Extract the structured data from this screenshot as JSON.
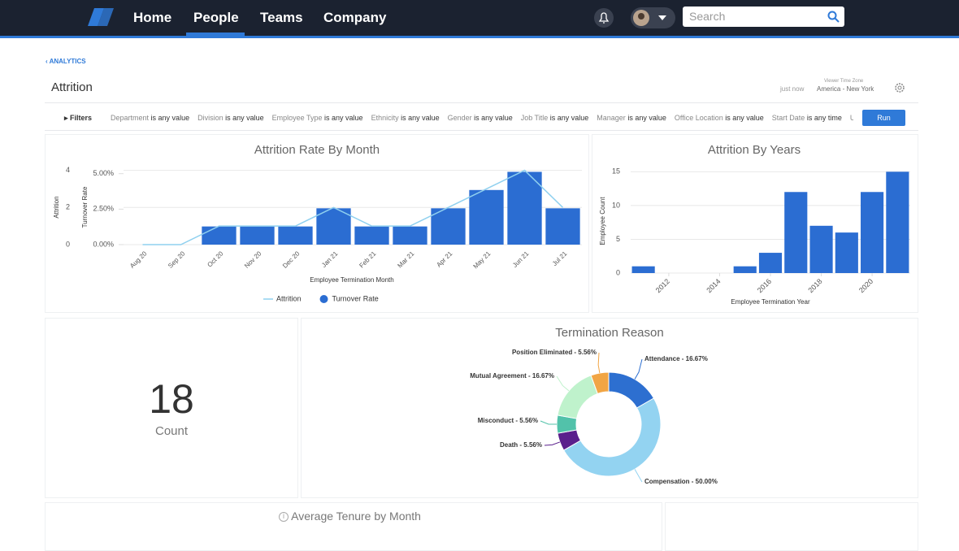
{
  "nav": {
    "items": [
      "Home",
      "People",
      "Teams",
      "Company"
    ],
    "active": 1,
    "search_placeholder": "Search"
  },
  "header": {
    "breadcrumb": "ANALYTICS",
    "title": "Attrition",
    "updated": "just now",
    "timezone_label": "Viewer Time Zone",
    "timezone": "America - New York"
  },
  "filters": {
    "label": "Filters",
    "run_button": "Run",
    "items": [
      {
        "field": "Department",
        "condition": "is any value"
      },
      {
        "field": "Division",
        "condition": "is any value"
      },
      {
        "field": "Employee Type",
        "condition": "is any value"
      },
      {
        "field": "Ethnicity",
        "condition": "is any value"
      },
      {
        "field": "Gender",
        "condition": "is any value"
      },
      {
        "field": "Job Title",
        "condition": "is any value"
      },
      {
        "field": "Manager",
        "condition": "is any value"
      },
      {
        "field": "Office Location",
        "condition": "is any value"
      },
      {
        "field": "Start Date",
        "condition": "is any time"
      },
      {
        "field": "Use"
      }
    ]
  },
  "kpi": {
    "value": 18,
    "label": "Count"
  },
  "tiles": {
    "average_tenure_title": "Average Tenure by Month"
  },
  "chart_data": [
    {
      "type": "combo",
      "title": "Attrition Rate By Month",
      "categories": [
        "Aug 20",
        "Sep 20",
        "Oct 20",
        "Nov 20",
        "Dec 20",
        "Jan 21",
        "Feb 21",
        "Mar 21",
        "Apr 21",
        "May 21",
        "Jun 21",
        "Jul 21"
      ],
      "series": [
        {
          "name": "Attrition",
          "type": "line",
          "color": "#8fd0ef",
          "values": [
            0,
            0,
            1,
            1,
            1,
            2,
            1,
            1,
            2,
            3,
            4,
            2
          ]
        },
        {
          "name": "Turnover Rate",
          "type": "bar",
          "axis": "y2",
          "color": "#2b6dd2",
          "values": [
            0,
            0,
            1.28,
            1.28,
            1.28,
            2.56,
            1.28,
            1.28,
            2.56,
            3.85,
            5.13,
            2.56
          ]
        }
      ],
      "ylabel": "Attrition",
      "y2label": "Turnover Rate",
      "xlabel": "Employee Termination Month",
      "ylim": [
        0,
        4.2
      ],
      "yticks": [
        0,
        2,
        4
      ],
      "y2lim": [
        0,
        5.5
      ],
      "y2ticks": [
        {
          "value": 0,
          "label": "0.00%"
        },
        {
          "value": 2.5,
          "label": "2.50%"
        },
        {
          "value": 5,
          "label": "5.00%"
        }
      ],
      "grid": true,
      "legend": "bottom"
    },
    {
      "type": "bar",
      "title": "Attrition By Years",
      "x": [
        2011,
        2015,
        2016,
        2017,
        2018,
        2019,
        2020,
        2021
      ],
      "values": [
        1,
        1,
        3,
        12,
        7,
        6,
        12,
        15
      ],
      "color": "#2b6dd2",
      "xlim": [
        2010.5,
        2021.5
      ],
      "xticks": [
        2012,
        2014,
        2016,
        2018,
        2020
      ],
      "ylim": [
        0,
        15.4
      ],
      "yticks": [
        0,
        5,
        10,
        15
      ],
      "ylabel": "Employee Count",
      "xlabel": "Employee Termination Year",
      "grid": true
    },
    {
      "type": "donut",
      "title": "Termination Reason",
      "values": [
        16.67,
        50.0,
        5.56,
        5.56,
        16.67,
        5.56
      ],
      "value_labels": [
        "Attendance - 16.67%",
        "Compensation - 50.00%",
        "Death - 5.56%",
        "Misconduct - 5.56%",
        "Mutual Agreement - 16.67%",
        "Position Eliminated - 5.56%"
      ],
      "colors": [
        "#2d6fd0",
        "#93d3f1",
        "#5a1f8c",
        "#52c2aa",
        "#bff2cc",
        "#f1a544"
      ]
    }
  ]
}
